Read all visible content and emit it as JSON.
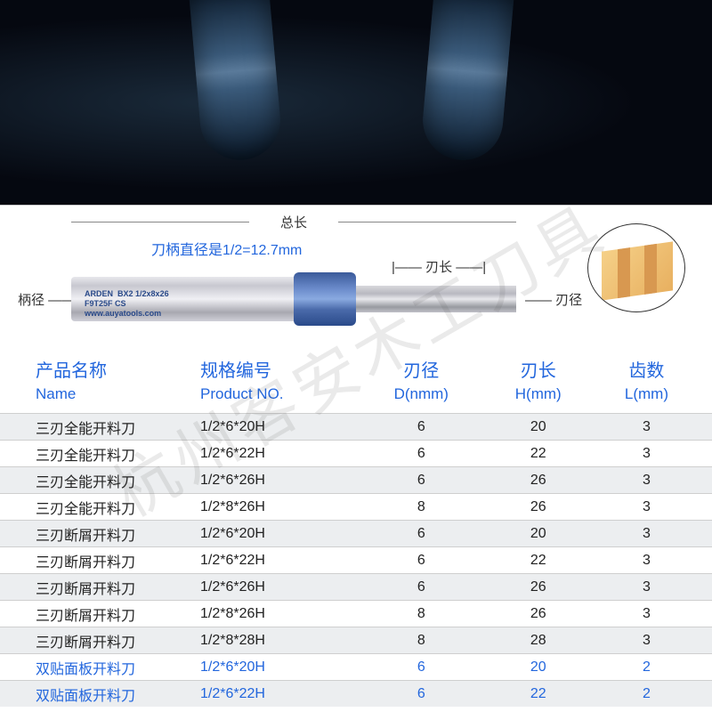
{
  "diagram": {
    "total_length_label": "总长",
    "shank_note": "刀柄直径是1/2=12.7mm",
    "edge_length_label": "刃长",
    "handle_dia_label": "柄径",
    "edge_dia_label": "刃径",
    "brand": "ARDEN",
    "model_line1": "BX2 1/2x8x26",
    "model_line2": "F9T25F  CS",
    "url": "www.auyatools.com"
  },
  "headers": {
    "name_zh": "产品名称",
    "name_en": "Name",
    "product_zh": "规格编号",
    "product_en": "Product NO.",
    "d_zh": "刃径",
    "d_en": "D(nmm)",
    "h_zh": "刃长",
    "h_en": "H(mm)",
    "l_zh": "齿数",
    "l_en": "L(mm)"
  },
  "rows": [
    {
      "name": "三刃全能开料刀",
      "no": "1/2*6*20H",
      "d": "6",
      "h": "20",
      "l": "3",
      "color": "black"
    },
    {
      "name": "三刃全能开料刀",
      "no": "1/2*6*22H",
      "d": "6",
      "h": "22",
      "l": "3",
      "color": "black"
    },
    {
      "name": "三刃全能开料刀",
      "no": "1/2*6*26H",
      "d": "6",
      "h": "26",
      "l": "3",
      "color": "black"
    },
    {
      "name": "三刃全能开料刀",
      "no": "1/2*8*26H",
      "d": "8",
      "h": "26",
      "l": "3",
      "color": "black"
    },
    {
      "name": "三刃断屑开料刀",
      "no": "1/2*6*20H",
      "d": "6",
      "h": "20",
      "l": "3",
      "color": "black"
    },
    {
      "name": "三刃断屑开料刀",
      "no": "1/2*6*22H",
      "d": "6",
      "h": "22",
      "l": "3",
      "color": "black"
    },
    {
      "name": "三刃断屑开料刀",
      "no": "1/2*6*26H",
      "d": "6",
      "h": "26",
      "l": "3",
      "color": "black"
    },
    {
      "name": "三刃断屑开料刀",
      "no": "1/2*8*26H",
      "d": "8",
      "h": "26",
      "l": "3",
      "color": "black"
    },
    {
      "name": "三刃断屑开料刀",
      "no": "1/2*8*28H",
      "d": "8",
      "h": "28",
      "l": "3",
      "color": "black"
    },
    {
      "name": "双贴面板开料刀",
      "no": "1/2*6*20H",
      "d": "6",
      "h": "20",
      "l": "2",
      "color": "blue"
    },
    {
      "name": "双贴面板开料刀",
      "no": "1/2*6*22H",
      "d": "6",
      "h": "22",
      "l": "2",
      "color": "blue"
    }
  ],
  "watermark": "杭州客安木工刀具",
  "colors": {
    "accent": "#2266dd",
    "row_odd_bg": "#eceef0",
    "row_even_bg": "#ffffff",
    "border": "#cfcfcf"
  }
}
